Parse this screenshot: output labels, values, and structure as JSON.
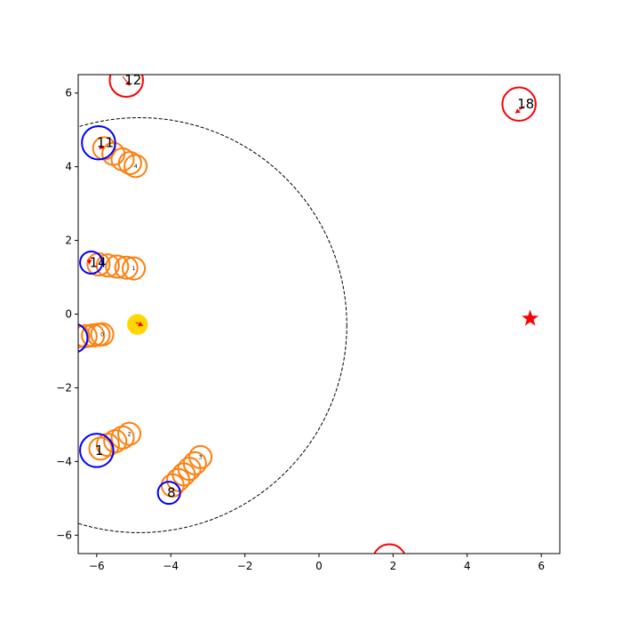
{
  "chart_data": {
    "type": "scatter",
    "title": "",
    "xlabel": "",
    "ylabel": "",
    "xlim": [
      -6.5,
      6.5
    ],
    "ylim": [
      -6.5,
      6.5
    ],
    "xticks": [
      "−6",
      "−4",
      "−2",
      "0",
      "2",
      "4",
      "6"
    ],
    "yticks": [
      "−6",
      "−4",
      "−2",
      "0",
      "2",
      "4",
      "6"
    ],
    "xtick_values": [
      -6,
      -4,
      -2,
      0,
      2,
      4,
      6
    ],
    "ytick_values": [
      -6,
      -4,
      -2,
      0,
      2,
      4,
      6
    ],
    "grid": false,
    "boundary_circle": {
      "center": [
        -4.85,
        -0.3
      ],
      "radius": 5.6,
      "style": "dashed",
      "color": "#000000"
    },
    "center_marker": {
      "x": -4.9,
      "y": -0.28,
      "radius": 0.28,
      "color": "#FFD700"
    },
    "goal_marker": {
      "x": 5.7,
      "y": -0.12,
      "shape": "star",
      "color": "#FF0000"
    },
    "blue_agents": [
      {
        "label": "11",
        "x": -5.95,
        "y": 4.65,
        "r": 0.45
      },
      {
        "label": "14",
        "x": -6.15,
        "y": 1.4,
        "r": 0.3
      },
      {
        "label": "",
        "x": -6.65,
        "y": -0.65,
        "r": 0.4
      },
      {
        "label": "1",
        "x": -6.0,
        "y": -3.7,
        "r": 0.45
      },
      {
        "label": "8",
        "x": -4.05,
        "y": -4.85,
        "r": 0.3
      }
    ],
    "red_agents": [
      {
        "label": "12",
        "x": -5.2,
        "y": 6.35,
        "r": 0.45
      },
      {
        "label": "18",
        "x": 5.4,
        "y": 5.7,
        "r": 0.45
      },
      {
        "label": "",
        "x": 1.9,
        "y": -6.7,
        "r": 0.45
      }
    ],
    "orange_trails": [
      {
        "label": "4",
        "points": [
          [
            -5.8,
            4.5
          ],
          [
            -5.55,
            4.35
          ],
          [
            -5.3,
            4.2
          ],
          [
            -5.1,
            4.1
          ],
          [
            -4.95,
            4.02
          ]
        ],
        "r": 0.3
      },
      {
        "label": "1",
        "points": [
          [
            -5.95,
            1.35
          ],
          [
            -5.7,
            1.32
          ],
          [
            -5.45,
            1.29
          ],
          [
            -5.2,
            1.26
          ],
          [
            -5.0,
            1.24
          ]
        ],
        "r": 0.3
      },
      {
        "label": "0",
        "points": [
          [
            -6.5,
            -0.6
          ],
          [
            -6.3,
            -0.6
          ],
          [
            -6.1,
            -0.58
          ],
          [
            -5.95,
            -0.56
          ],
          [
            -5.85,
            -0.55
          ]
        ],
        "r": 0.3
      },
      {
        "label": "2",
        "points": [
          [
            -5.9,
            -3.65
          ],
          [
            -5.7,
            -3.55
          ],
          [
            -5.5,
            -3.45
          ],
          [
            -5.3,
            -3.35
          ],
          [
            -5.12,
            -3.25
          ]
        ],
        "r": 0.3
      },
      {
        "label": "3",
        "points": [
          [
            -3.95,
            -4.65
          ],
          [
            -3.8,
            -4.5
          ],
          [
            -3.65,
            -4.35
          ],
          [
            -3.5,
            -4.2
          ],
          [
            -3.35,
            -4.05
          ],
          [
            -3.2,
            -3.88
          ]
        ],
        "r": 0.3
      }
    ],
    "arrows": [
      {
        "from": [
          -5.3,
          6.45
        ],
        "to": [
          -5.1,
          6.2
        ]
      },
      {
        "from": [
          5.55,
          5.65
        ],
        "to": [
          5.3,
          5.45
        ]
      },
      {
        "from": [
          -5.95,
          4.55
        ],
        "to": [
          -5.8,
          4.5
        ]
      },
      {
        "from": [
          -6.2,
          1.5
        ],
        "to": [
          -6.2,
          1.35
        ]
      },
      {
        "from": [
          -4.95,
          -0.22
        ],
        "to": [
          -4.75,
          -0.32
        ]
      }
    ],
    "colors": {
      "blue": "#0000FF",
      "red": "#FF0000",
      "orange": "#FF7F0E",
      "gold": "#FFD700",
      "axis": "#000000"
    }
  }
}
